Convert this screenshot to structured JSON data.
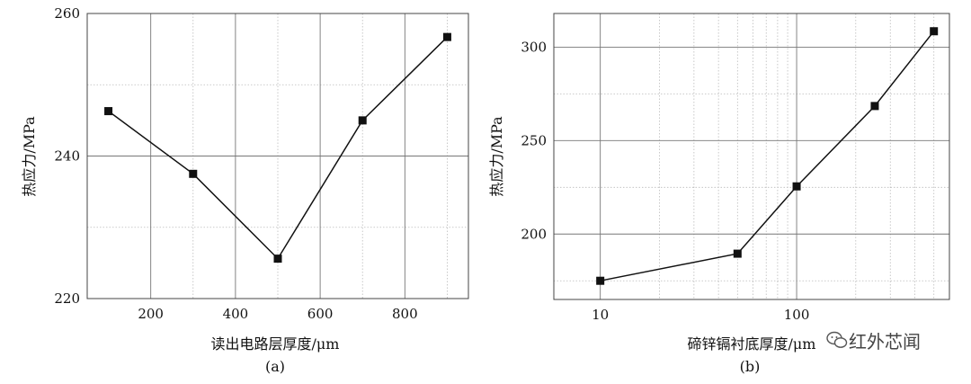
{
  "chart_data": [
    {
      "type": "line",
      "subtitle": "(a)",
      "xlabel": "读出电路层厚度/μm",
      "ylabel": "热应力/MPa",
      "x": [
        100,
        300,
        500,
        700,
        900
      ],
      "y": [
        246.3,
        237.5,
        225.6,
        245.0,
        256.7
      ],
      "xlim": [
        50,
        950
      ],
      "ylim": [
        220,
        260
      ],
      "xscale": "linear",
      "xticks": [
        200,
        400,
        600,
        800
      ],
      "yticks": [
        220,
        240,
        260
      ],
      "xtick_labels": [
        "200",
        "400",
        "600",
        "800"
      ],
      "ytick_labels": [
        "220",
        "240",
        "260"
      ],
      "marker": "square",
      "grid": true
    },
    {
      "type": "line",
      "subtitle": "(b)",
      "xlabel": "碲锌镉衬底厚度/μm",
      "ylabel": "热应力/MPa",
      "x": [
        10,
        50,
        100,
        250,
        500
      ],
      "y": [
        175,
        189.5,
        225.5,
        268.5,
        308.5
      ],
      "xlim": [
        5.8,
        600
      ],
      "ylim": [
        165,
        318
      ],
      "xscale": "log",
      "xticks": [
        10,
        100
      ],
      "yticks": [
        200,
        250,
        300
      ],
      "xtick_labels": [
        "10",
        "100"
      ],
      "ytick_labels": [
        "200",
        "250",
        "300"
      ],
      "marker": "square",
      "grid": true
    }
  ],
  "watermark": "红外芯闻"
}
